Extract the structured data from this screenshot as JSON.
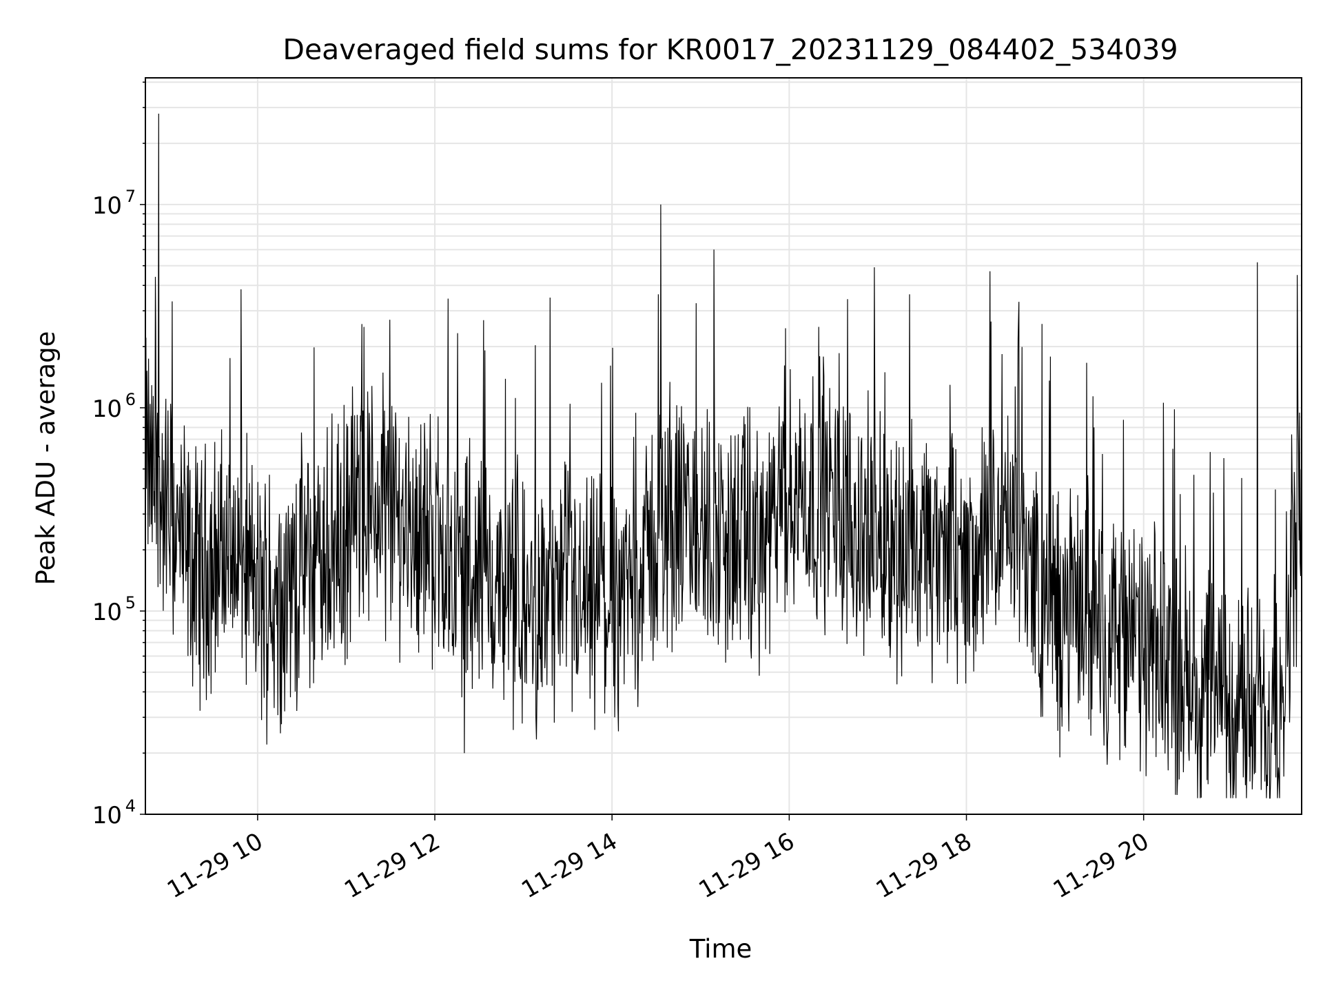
{
  "chart_data": {
    "type": "line",
    "title": "Deaveraged field sums for KR0017_20231129_084402_534039",
    "xlabel": "Time",
    "ylabel": "Peak ADU - average",
    "yscale": "log",
    "grid": true,
    "line_color": "#000000",
    "grid_color": "#e5e5e5",
    "xlim": [
      "2023-11-29T08:44",
      "2023-11-29T21:47"
    ],
    "ylim": [
      10000,
      42000000
    ],
    "x_ticks": [
      "11-29 10",
      "11-29 12",
      "11-29 14",
      "11-29 16",
      "11-29 18",
      "11-29 20"
    ],
    "y_ticks": [
      {
        "base": "10",
        "exp": "4"
      },
      {
        "base": "10",
        "exp": "5"
      },
      {
        "base": "10",
        "exp": "6"
      },
      {
        "base": "10",
        "exp": "7"
      }
    ],
    "series": [
      {
        "x": [
          "2023-11-29T08:44",
          "2023-11-29T08:50",
          "2023-11-29T08:55",
          "2023-11-29T09:00",
          "2023-11-29T09:05",
          "2023-11-29T09:10",
          "2023-11-29T09:15",
          "2023-11-29T09:20",
          "2023-11-29T09:30",
          "2023-11-29T09:40",
          "2023-11-29T09:50",
          "2023-11-29T10:00",
          "2023-11-29T10:10",
          "2023-11-29T10:20",
          "2023-11-29T10:30",
          "2023-11-29T10:40",
          "2023-11-29T10:50",
          "2023-11-29T11:00",
          "2023-11-29T11:10",
          "2023-11-29T11:20",
          "2023-11-29T11:30",
          "2023-11-29T11:40",
          "2023-11-29T11:50",
          "2023-11-29T12:00",
          "2023-11-29T12:15",
          "2023-11-29T12:30",
          "2023-11-29T12:45",
          "2023-11-29T13:00",
          "2023-11-29T13:15",
          "2023-11-29T13:30",
          "2023-11-29T13:45",
          "2023-11-29T14:00",
          "2023-11-29T14:15",
          "2023-11-29T14:25",
          "2023-11-29T14:35",
          "2023-11-29T14:50",
          "2023-11-29T15:05",
          "2023-11-29T15:15",
          "2023-11-29T15:30",
          "2023-11-29T15:45",
          "2023-11-29T16:00",
          "2023-11-29T16:10",
          "2023-11-29T16:20",
          "2023-11-29T16:35",
          "2023-11-29T16:50",
          "2023-11-29T17:05",
          "2023-11-29T17:20",
          "2023-11-29T17:35",
          "2023-11-29T17:50",
          "2023-11-29T18:05",
          "2023-11-29T18:20",
          "2023-11-29T18:35",
          "2023-11-29T18:50",
          "2023-11-29T19:05",
          "2023-11-29T19:20",
          "2023-11-29T19:35",
          "2023-11-29T19:50",
          "2023-11-29T20:05",
          "2023-11-29T20:20",
          "2023-11-29T20:35",
          "2023-11-29T20:50",
          "2023-11-29T21:05",
          "2023-11-29T21:15",
          "2023-11-29T21:25",
          "2023-11-29T21:35",
          "2023-11-29T21:47"
        ],
        "y": [
          600000,
          400000,
          350000,
          300000,
          250000,
          200000,
          160000,
          150000,
          180000,
          190000,
          180000,
          120000,
          110000,
          120000,
          160000,
          170000,
          200000,
          230000,
          320000,
          350000,
          300000,
          280000,
          250000,
          230000,
          160000,
          150000,
          120000,
          100000,
          110000,
          120000,
          100000,
          110000,
          130000,
          200000,
          260000,
          270000,
          240000,
          220000,
          220000,
          210000,
          350000,
          400000,
          380000,
          300000,
          250000,
          230000,
          200000,
          180000,
          170000,
          180000,
          230000,
          280000,
          120000,
          90000,
          110000,
          80000,
          70000,
          60000,
          50000,
          45000,
          40000,
          32000,
          30000,
          30000,
          60000,
          400000
        ]
      }
    ]
  }
}
